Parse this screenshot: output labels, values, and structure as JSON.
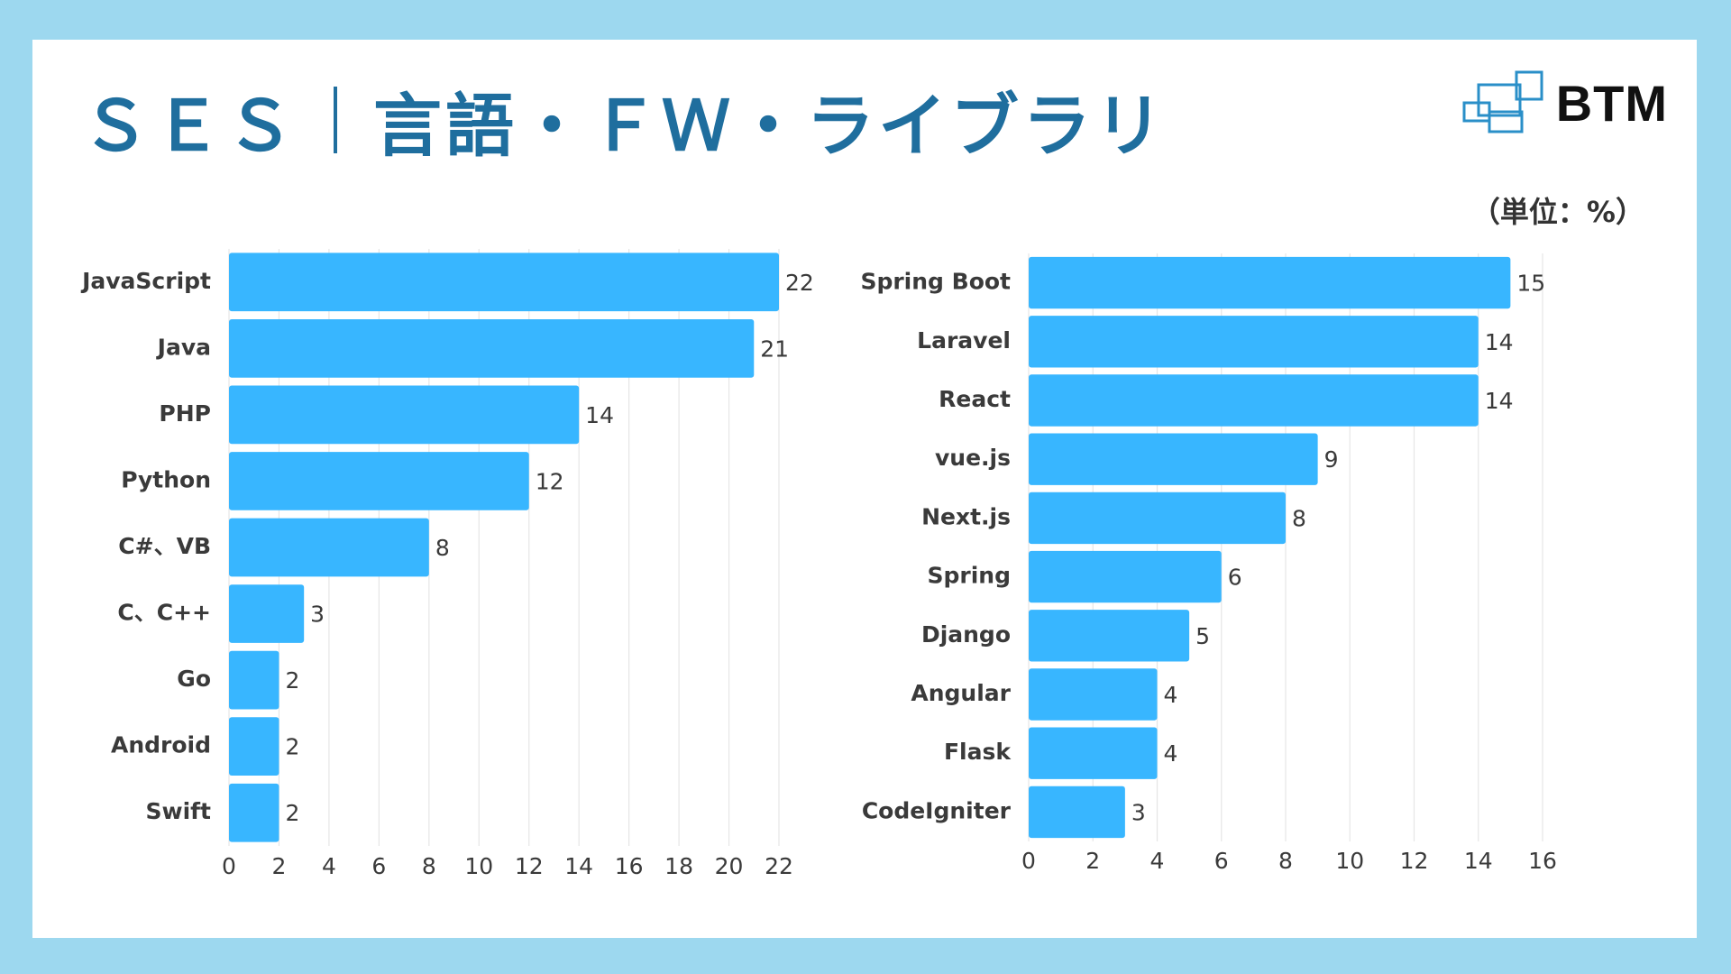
{
  "header": {
    "title_left": "ＳＥＳ",
    "title_right": "言語・ＦＷ・ライブラリ",
    "logo_text": "BTM",
    "unit": "（単位：%）"
  },
  "colors": {
    "background": "#9dd8ef",
    "title": "#1f6e9e",
    "bar": "#38b6ff",
    "gridline": "#e6e6e6",
    "logo_accent": "#2a8fc8"
  },
  "chart_data": [
    {
      "type": "bar",
      "orientation": "horizontal",
      "categories": [
        "JavaScript",
        "Java",
        "PHP",
        "Python",
        "C#、VB",
        "C、C++",
        "Go",
        "Android",
        "Swift"
      ],
      "values": [
        22,
        21,
        14,
        12,
        8,
        3,
        2,
        2,
        2
      ],
      "xlim": [
        0,
        22
      ],
      "xticks": [
        0,
        2,
        4,
        6,
        8,
        10,
        12,
        14,
        16,
        18,
        20,
        22
      ],
      "grid": true
    },
    {
      "type": "bar",
      "orientation": "horizontal",
      "categories": [
        "Spring Boot",
        "Laravel",
        "React",
        "vue.js",
        "Next.js",
        "Spring",
        "Django",
        "Angular",
        "Flask",
        "CodeIgniter"
      ],
      "values": [
        15,
        14,
        14,
        9,
        8,
        6,
        5,
        4,
        4,
        3
      ],
      "xlim": [
        0,
        16
      ],
      "xticks": [
        0,
        2,
        4,
        6,
        8,
        10,
        12,
        14,
        16
      ],
      "grid": true
    }
  ]
}
